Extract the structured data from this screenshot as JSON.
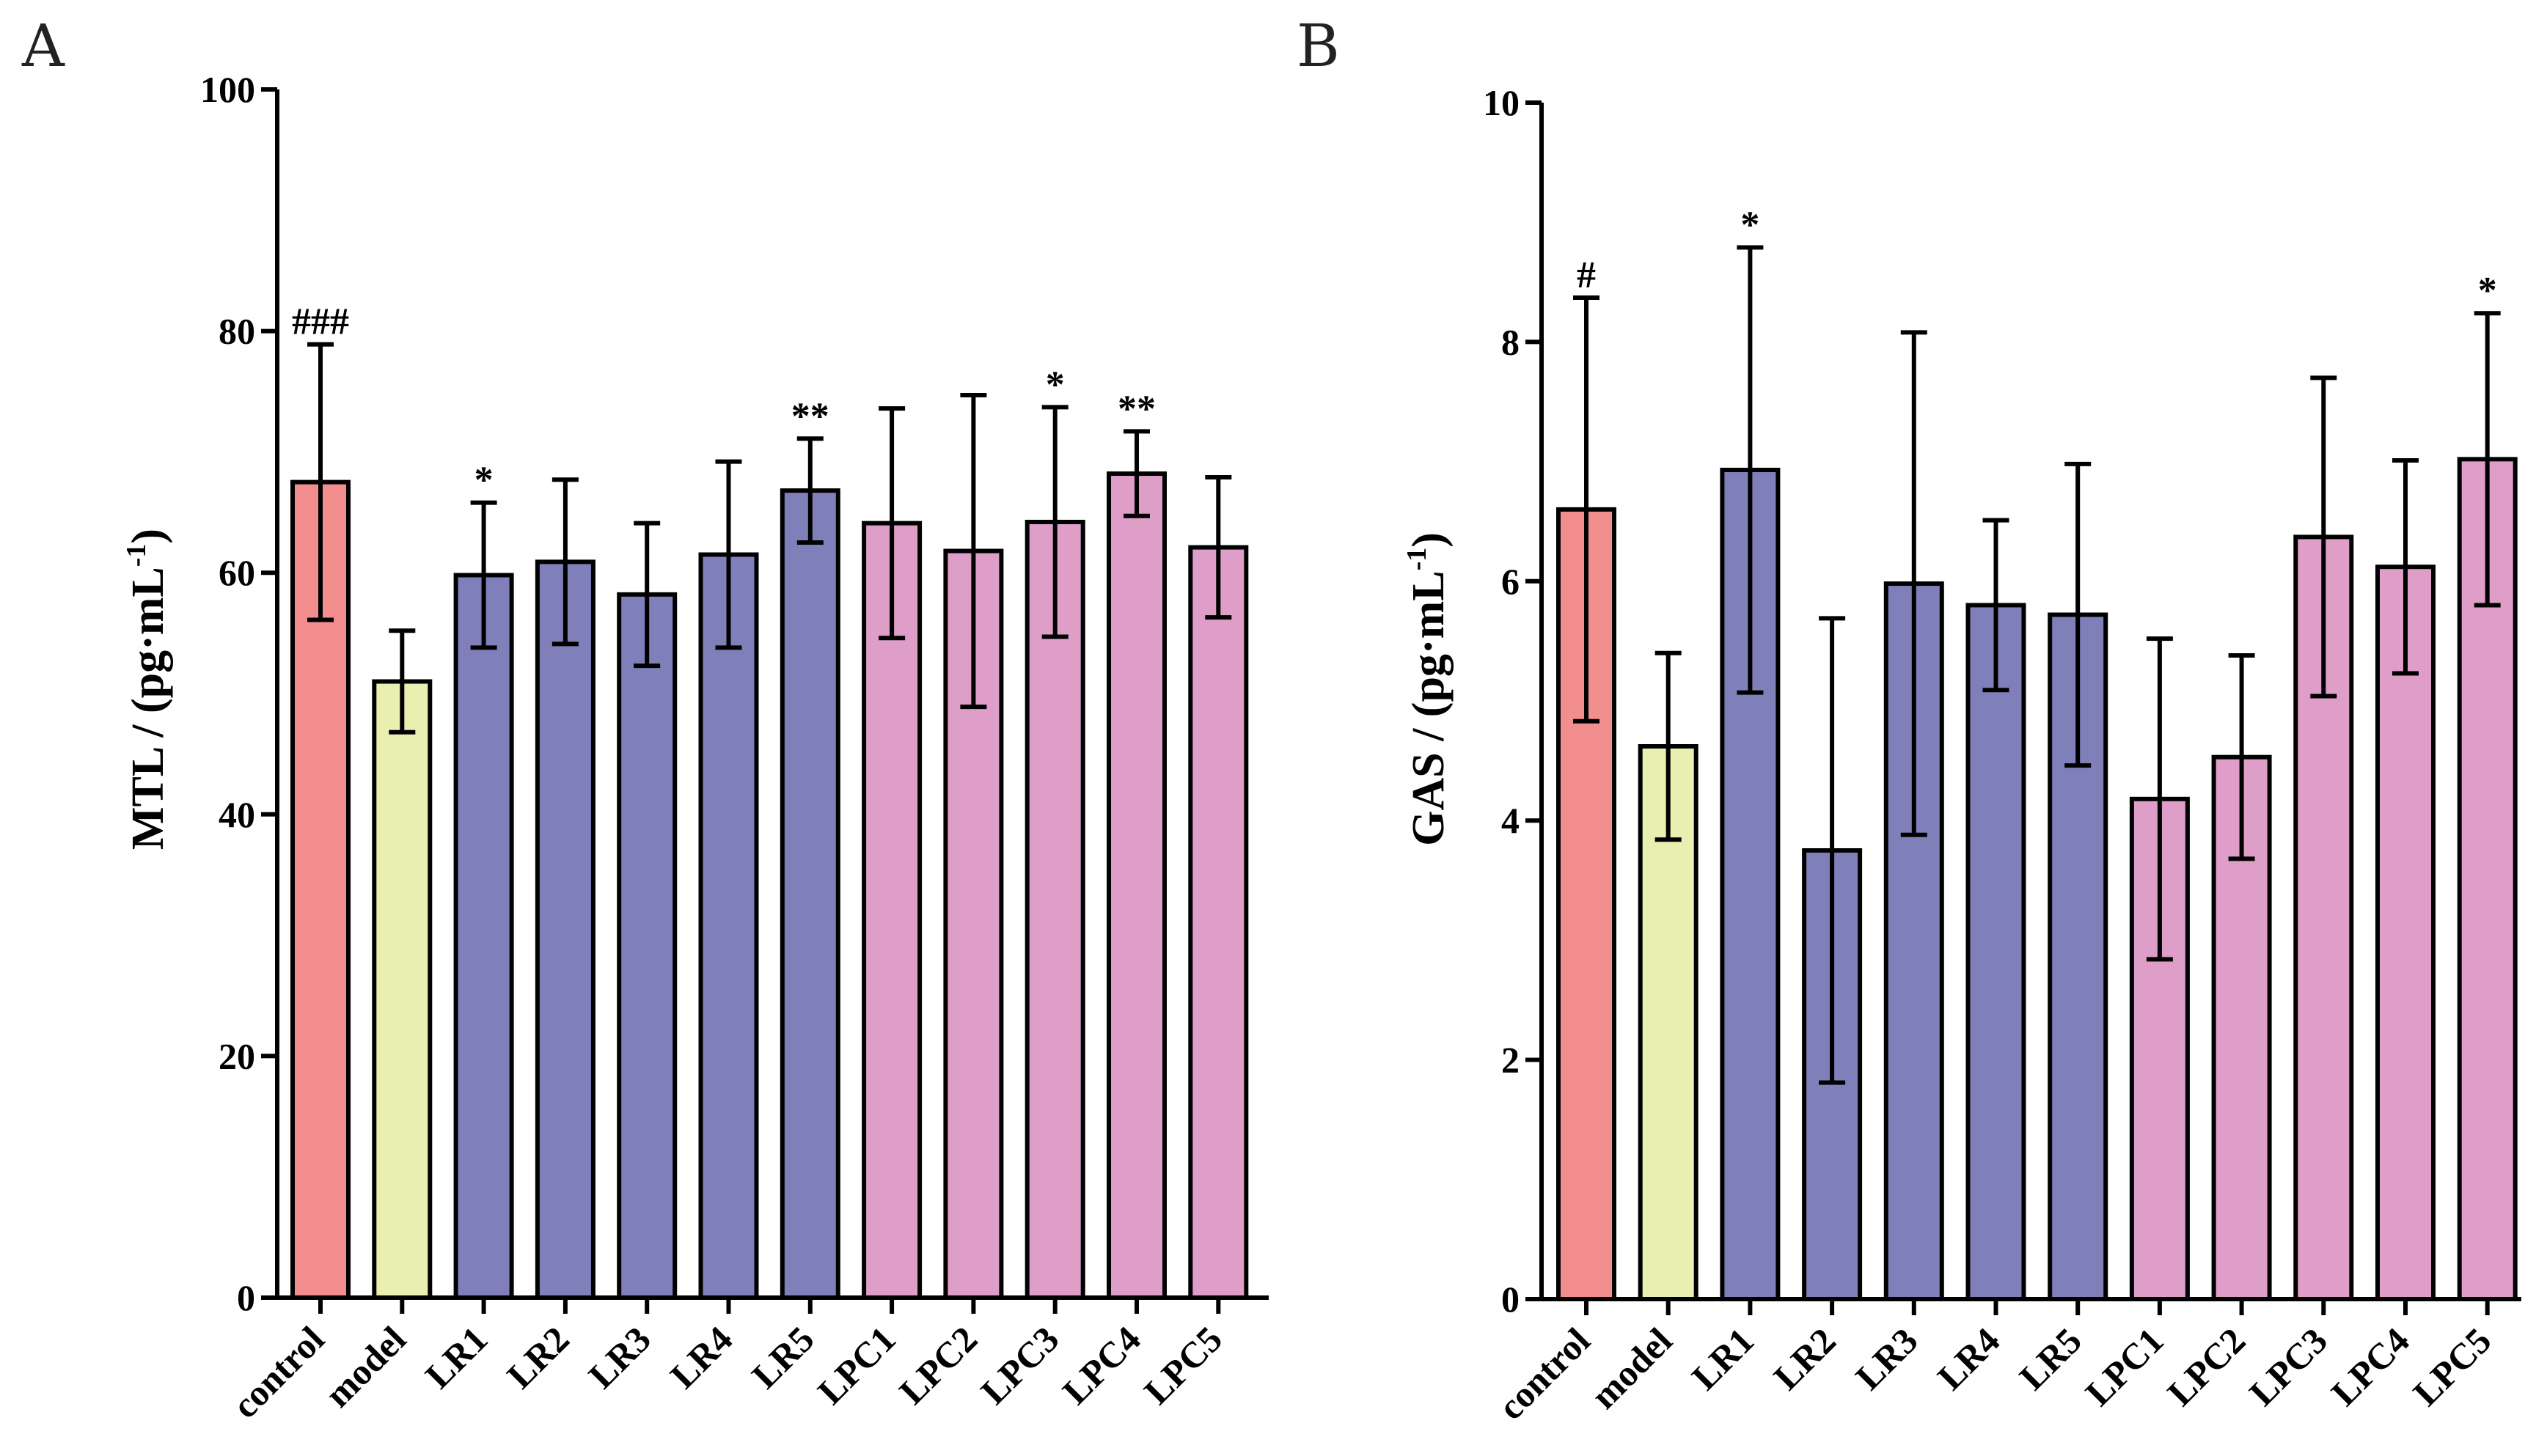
{
  "colors": {
    "control": "#f28e8e",
    "model": "#e8efb0",
    "LR": "#7f80b9",
    "LPC": "#de9ec8",
    "axis": "#000000"
  },
  "chart_data": [
    {
      "panel": "A",
      "type": "bar",
      "ylabel_main": "MTL / (pg·mL",
      "ylabel_sup": "-1",
      "ylabel_close": ")",
      "ylim": [
        0,
        100
      ],
      "yticks": [
        "0",
        "20",
        "40",
        "60",
        "80",
        "100"
      ],
      "ytick_values": [
        0,
        20,
        40,
        60,
        80,
        100
      ],
      "categories": [
        "control",
        "model",
        "LR1",
        "LR2",
        "LR3",
        "LR4",
        "LR5",
        "LPC1",
        "LPC2",
        "LPC3",
        "LPC4",
        "LPC5"
      ],
      "groups": [
        "control",
        "model",
        "LR",
        "LR",
        "LR",
        "LR",
        "LR",
        "LPC",
        "LPC",
        "LPC",
        "LPC",
        "LPC"
      ],
      "values": [
        67.5,
        51.0,
        59.8,
        60.9,
        58.2,
        61.5,
        66.8,
        64.1,
        61.8,
        64.2,
        68.2,
        62.1
      ],
      "errors": [
        11.4,
        4.2,
        6.0,
        6.8,
        5.9,
        7.7,
        4.3,
        9.5,
        12.9,
        9.5,
        3.5,
        5.8
      ],
      "significance": [
        "###",
        "",
        "*",
        "",
        "",
        "",
        "**",
        "",
        "",
        "*",
        "**",
        ""
      ]
    },
    {
      "panel": "B",
      "type": "bar",
      "ylabel_main": "GAS / (pg·mL",
      "ylabel_sup": "-1",
      "ylabel_close": ")",
      "ylim": [
        0,
        10
      ],
      "yticks": [
        "0",
        "2",
        "4",
        "6",
        "8",
        "10"
      ],
      "ytick_values": [
        0,
        2,
        4,
        6,
        8,
        10
      ],
      "categories": [
        "control",
        "model",
        "LR1",
        "LR2",
        "LR3",
        "LR4",
        "LR5",
        "LPC1",
        "LPC2",
        "LPC3",
        "LPC4",
        "LPC5"
      ],
      "groups": [
        "control",
        "model",
        "LR",
        "LR",
        "LR",
        "LR",
        "LR",
        "LPC",
        "LPC",
        "LPC",
        "LPC",
        "LPC"
      ],
      "values": [
        6.6,
        4.62,
        6.93,
        3.75,
        5.98,
        5.8,
        5.72,
        4.18,
        4.53,
        6.37,
        6.12,
        7.02
      ],
      "errors": [
        1.77,
        0.78,
        1.86,
        1.94,
        2.1,
        0.71,
        1.26,
        1.34,
        0.85,
        1.33,
        0.89,
        1.22
      ],
      "significance": [
        "#",
        "",
        "*",
        "",
        "",
        "",
        "",
        "",
        "",
        "",
        "",
        "*"
      ]
    }
  ]
}
